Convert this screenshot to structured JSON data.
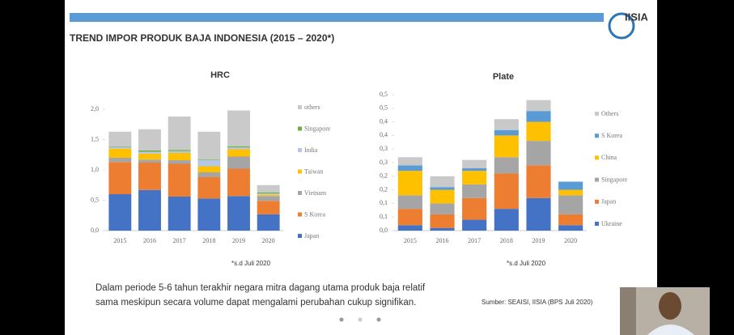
{
  "slide": {
    "title": "TREND IMPOR PRODUK BAJA INDONESIA (2015 – 2020*)",
    "logo": "IISIA",
    "text": [
      "Dalam periode 5-6 tahun terakhir negara mitra dagang utama produk baja relatif",
      "sama meskipun secara volume dapat mengalami perubahan cukup signifikan."
    ],
    "source": "Sumber: SEAISI, IISIA (BPS Juli 2020)"
  },
  "chart_data": [
    {
      "type": "stacked_bar",
      "title": "HRC",
      "note": "*s.d Juli 2020",
      "categories": [
        "2015",
        "2016",
        "2017",
        "2018",
        "2019",
        "2020"
      ],
      "ylim": [
        0,
        2.0
      ],
      "yticks": [
        {
          "value": 0,
          "label": "0,0"
        },
        {
          "value": 0.5,
          "label": "0,5"
        },
        {
          "value": 1.0,
          "label": "1,0"
        },
        {
          "value": 1.5,
          "label": "1,5"
        },
        {
          "value": 2.0,
          "label": "2,0"
        }
      ],
      "series": [
        {
          "name": "Japan",
          "color": "#4472c4",
          "values": [
            0.6,
            0.67,
            0.56,
            0.53,
            0.57,
            0.27
          ]
        },
        {
          "name": "S Korea",
          "color": "#ed7d31",
          "values": [
            0.53,
            0.45,
            0.54,
            0.35,
            0.45,
            0.22
          ]
        },
        {
          "name": "Vietnam",
          "color": "#a5a5a5",
          "values": [
            0.07,
            0.05,
            0.06,
            0.08,
            0.2,
            0.08
          ]
        },
        {
          "name": "Taiwan",
          "color": "#ffc000",
          "values": [
            0.15,
            0.1,
            0.12,
            0.1,
            0.12,
            0.02
          ]
        },
        {
          "name": "India",
          "color": "#b4c7e7",
          "values": [
            0.02,
            0.03,
            0.03,
            0.1,
            0.03,
            0.02
          ]
        },
        {
          "name": "Singapore",
          "color": "#70ad47",
          "values": [
            0.01,
            0.02,
            0.02,
            0.01,
            0.02,
            0.02
          ]
        },
        {
          "name": "others",
          "color": "#c9c9c9",
          "values": [
            0.25,
            0.35,
            0.55,
            0.46,
            0.59,
            0.12
          ]
        }
      ]
    },
    {
      "type": "stacked_bar",
      "title": "Plate",
      "note": "*s.d Juli 2020",
      "categories": [
        "2015",
        "2016",
        "2017",
        "2018",
        "2019",
        "2020"
      ],
      "ylim": [
        0,
        0.5
      ],
      "yticks": [
        {
          "value": 0,
          "label": "0,0"
        },
        {
          "value": 0.05,
          "label": "0,1"
        },
        {
          "value": 0.1,
          "label": "0,1"
        },
        {
          "value": 0.15,
          "label": "0,2"
        },
        {
          "value": 0.2,
          "label": "0,2"
        },
        {
          "value": 0.25,
          "label": "0,3"
        },
        {
          "value": 0.3,
          "label": "0,3"
        },
        {
          "value": 0.35,
          "label": "0,4"
        },
        {
          "value": 0.4,
          "label": "0,4"
        },
        {
          "value": 0.45,
          "label": "0,5"
        },
        {
          "value": 0.5,
          "label": "0,5"
        }
      ],
      "series": [
        {
          "name": "Ukraine",
          "color": "#4472c4",
          "values": [
            0.02,
            0.01,
            0.04,
            0.08,
            0.12,
            0.02
          ]
        },
        {
          "name": "Japan",
          "color": "#ed7d31",
          "values": [
            0.06,
            0.05,
            0.08,
            0.13,
            0.12,
            0.04
          ]
        },
        {
          "name": "Singapore",
          "color": "#a5a5a5",
          "values": [
            0.05,
            0.04,
            0.05,
            0.06,
            0.09,
            0.07
          ]
        },
        {
          "name": "China",
          "color": "#ffc000",
          "values": [
            0.09,
            0.05,
            0.05,
            0.08,
            0.07,
            0.02
          ]
        },
        {
          "name": "S Korea",
          "color": "#5b9bd5",
          "values": [
            0.02,
            0.01,
            0.01,
            0.02,
            0.04,
            0.03
          ]
        },
        {
          "name": "Others",
          "color": "#c9c9c9",
          "values": [
            0.03,
            0.04,
            0.03,
            0.04,
            0.04,
            0
          ]
        }
      ]
    }
  ]
}
